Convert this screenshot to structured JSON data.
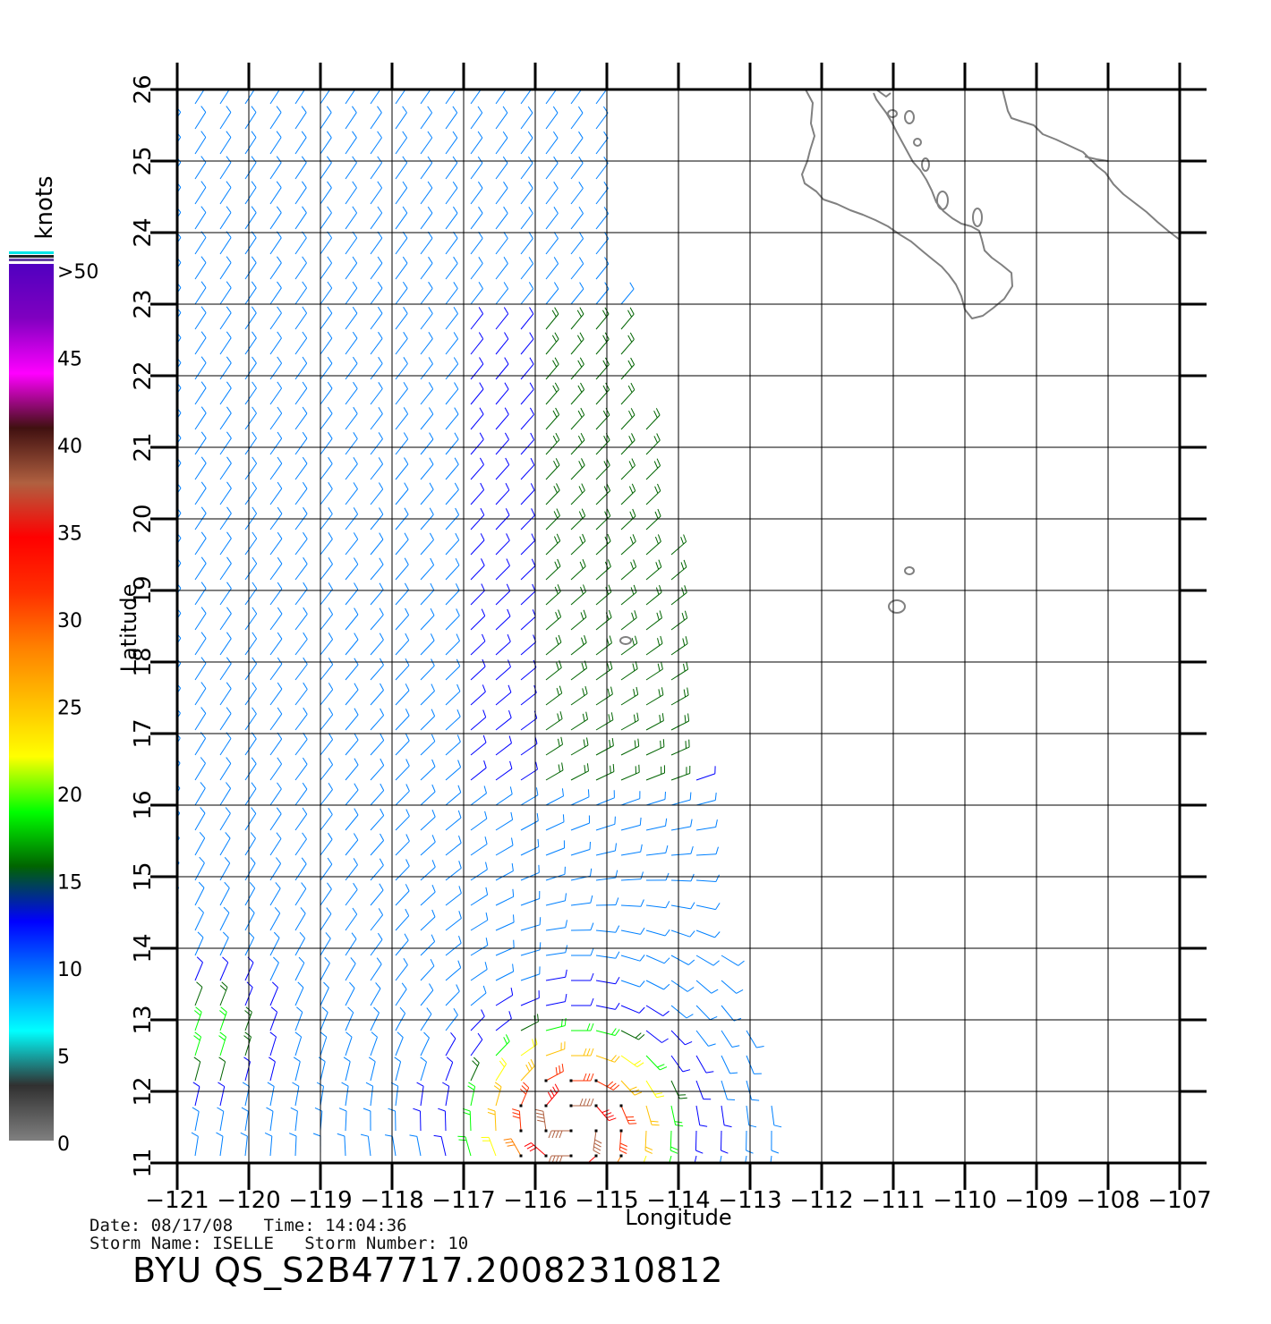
{
  "map": {
    "x_axis_label": "Longitude",
    "y_axis_label": "Latitude",
    "longitude_ticks": [
      "−121",
      "−120",
      "−119",
      "−118",
      "−117",
      "−116",
      "−115",
      "−114",
      "−113",
      "−112",
      "−111",
      "−110",
      "−109",
      "−108",
      "−107"
    ],
    "latitude_ticks": [
      "11",
      "12",
      "13",
      "14",
      "15",
      "16",
      "17",
      "18",
      "19",
      "20",
      "21",
      "22",
      "23",
      "24",
      "25",
      "26"
    ],
    "lon_range": [
      -121,
      -107
    ],
    "lat_range": [
      11,
      26
    ],
    "grid": true,
    "swath_extent": "west of about -113 longitude; reaches -114 near 19N and -112.5 near 12N",
    "land_outline_color": "#808080",
    "map_line_color": "#000000",
    "vector_style": "wind barbs colored by speed",
    "storm_center_region": "near 11.5N, -115.5"
  },
  "colorbar": {
    "unit_label": "knots",
    "tick_labels": [
      "0",
      "5",
      "10",
      "15",
      "20",
      "25",
      "30",
      "35",
      "40",
      "45",
      ">50"
    ],
    "gradient_stops": [
      "#808080",
      "#303030",
      "#00ffff",
      "#0080ff",
      "#0000ff",
      "#006400",
      "#00ff00",
      "#ffff00",
      "#ffc000",
      "#ff8000",
      "#ff3000",
      "#ff0000",
      "#b06040",
      "#401010",
      "#ff00ff",
      "#8000c0",
      "#5000c0"
    ]
  },
  "metadata": {
    "date_line": "Date: 08/17/08   Time: 14:04:36",
    "storm_line": "Storm Name: ISELLE   Storm Number: 10",
    "product_title": "BYU  QS_S2B47717.20082310812"
  }
}
